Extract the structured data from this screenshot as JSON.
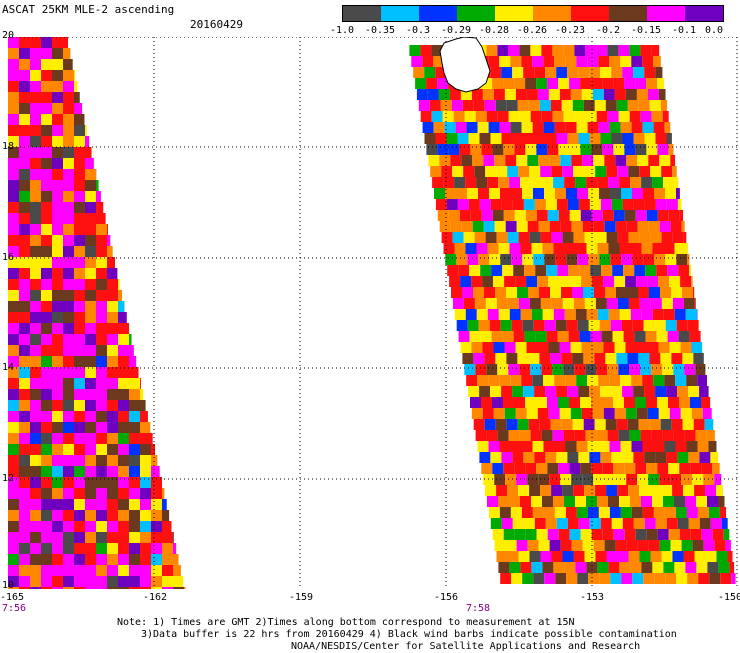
{
  "header": {
    "title": "ASCAT 25KM MLE-2 ascending",
    "date": "20160429"
  },
  "colorbar": {
    "colors": [
      "#4a4a4a",
      "#00bfff",
      "#0033ff",
      "#00aa00",
      "#ffee00",
      "#ff8800",
      "#ff1010",
      "#6b3a1e",
      "#ff00ff",
      "#7000c0"
    ],
    "labels": [
      "-1.0",
      "-0.35",
      "-0.3",
      "-0.29",
      "-0.28",
      "-0.26",
      "-0.23",
      "-0.2",
      "-0.15",
      "-0.1",
      "0.0"
    ]
  },
  "axes": {
    "x_ticks": [
      "-165",
      "-162",
      "-159",
      "-156",
      "-153",
      "-150"
    ],
    "y_ticks": [
      "20",
      "18",
      "16",
      "14",
      "12",
      "10"
    ],
    "times": [
      "7:56",
      "7:58"
    ]
  },
  "notes": [
    "Note: 1) Times are GMT 2)Times along bottom correspond to measurement at 15N",
    "3)Data buffer is 22 hrs from 20160429 4) Black wind barbs indicate possible contamination",
    "NOAA/NESDIS/Center for Satellite Applications and Research"
  ]
}
